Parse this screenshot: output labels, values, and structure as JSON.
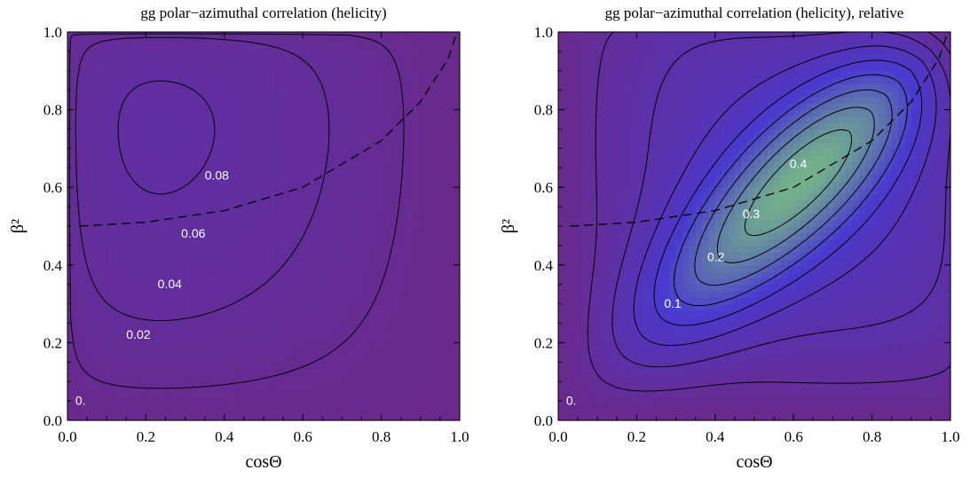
{
  "chart_data": [
    {
      "type": "heatmap",
      "title": "gg polar−azimuthal correlation (helicity)",
      "xlabel": "cosΘ",
      "ylabel": "β²",
      "xlim": [
        0,
        1
      ],
      "ylim": [
        0,
        1
      ],
      "xticks": [
        "0.0",
        "0.2",
        "0.4",
        "0.6",
        "0.8",
        "1.0"
      ],
      "yticks": [
        "0.0",
        "0.2",
        "0.4",
        "0.6",
        "0.8",
        "1.0"
      ],
      "contour_levels": [
        0.01,
        0.02,
        0.03,
        0.04,
        0.05,
        0.06,
        0.07,
        0.08,
        0.09
      ],
      "contour_labels": [
        {
          "text": "0.",
          "x": 0.02,
          "y": 0.04
        },
        {
          "text": "0.02",
          "x": 0.15,
          "y": 0.21
        },
        {
          "text": "0.04",
          "x": 0.23,
          "y": 0.34
        },
        {
          "text": "0.06",
          "x": 0.29,
          "y": 0.47
        },
        {
          "text": "0.08",
          "x": 0.35,
          "y": 0.62
        }
      ],
      "max_location": {
        "cos_theta": 0.55,
        "beta2": 0.73
      },
      "dashed_curve": [
        [
          0.03,
          0.5
        ],
        [
          0.2,
          0.51
        ],
        [
          0.4,
          0.54
        ],
        [
          0.6,
          0.6
        ],
        [
          0.8,
          0.72
        ],
        [
          0.9,
          0.82
        ],
        [
          0.97,
          0.93
        ],
        [
          0.99,
          0.99
        ]
      ],
      "colors": {
        "low": "#6a2a8c",
        "high": "#4a3ad0"
      }
    },
    {
      "type": "heatmap",
      "title": "gg polar−azimuthal correlation (helicity), relative",
      "xlabel": "cosΘ",
      "ylabel": "β²",
      "xlim": [
        0,
        1
      ],
      "ylim": [
        0,
        1
      ],
      "xticks": [
        "0.0",
        "0.2",
        "0.4",
        "0.6",
        "0.8",
        "1.0"
      ],
      "yticks": [
        "0.0",
        "0.2",
        "0.4",
        "0.6",
        "0.8",
        "1.0"
      ],
      "contour_levels": [
        0.05,
        0.1,
        0.15,
        0.2,
        0.25,
        0.3,
        0.35,
        0.4,
        0.45
      ],
      "contour_labels": [
        {
          "text": "0.",
          "x": 0.02,
          "y": 0.04
        },
        {
          "text": "0.1",
          "x": 0.27,
          "y": 0.29
        },
        {
          "text": "0.2",
          "x": 0.38,
          "y": 0.41
        },
        {
          "text": "0.3",
          "x": 0.47,
          "y": 0.52
        },
        {
          "text": "0.4",
          "x": 0.59,
          "y": 0.65
        }
      ],
      "max_location": {
        "cos_theta": 0.72,
        "beta2": 0.72
      },
      "dashed_curve": [
        [
          0.03,
          0.5
        ],
        [
          0.2,
          0.51
        ],
        [
          0.4,
          0.54
        ],
        [
          0.6,
          0.6
        ],
        [
          0.8,
          0.72
        ],
        [
          0.9,
          0.82
        ],
        [
          0.97,
          0.93
        ],
        [
          0.99,
          0.99
        ]
      ],
      "colors": {
        "low": "#6a2a8c",
        "mid": "#4a3ad0",
        "high": "#7ed07a"
      }
    }
  ]
}
